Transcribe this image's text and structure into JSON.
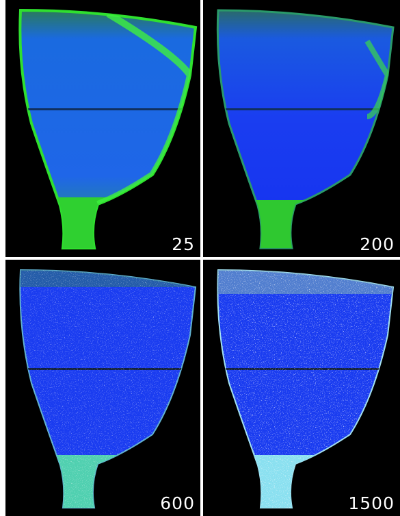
{
  "panels": [
    {
      "label": "25"
    },
    {
      "label": "200"
    },
    {
      "label": "600"
    },
    {
      "label": "1500"
    }
  ]
}
